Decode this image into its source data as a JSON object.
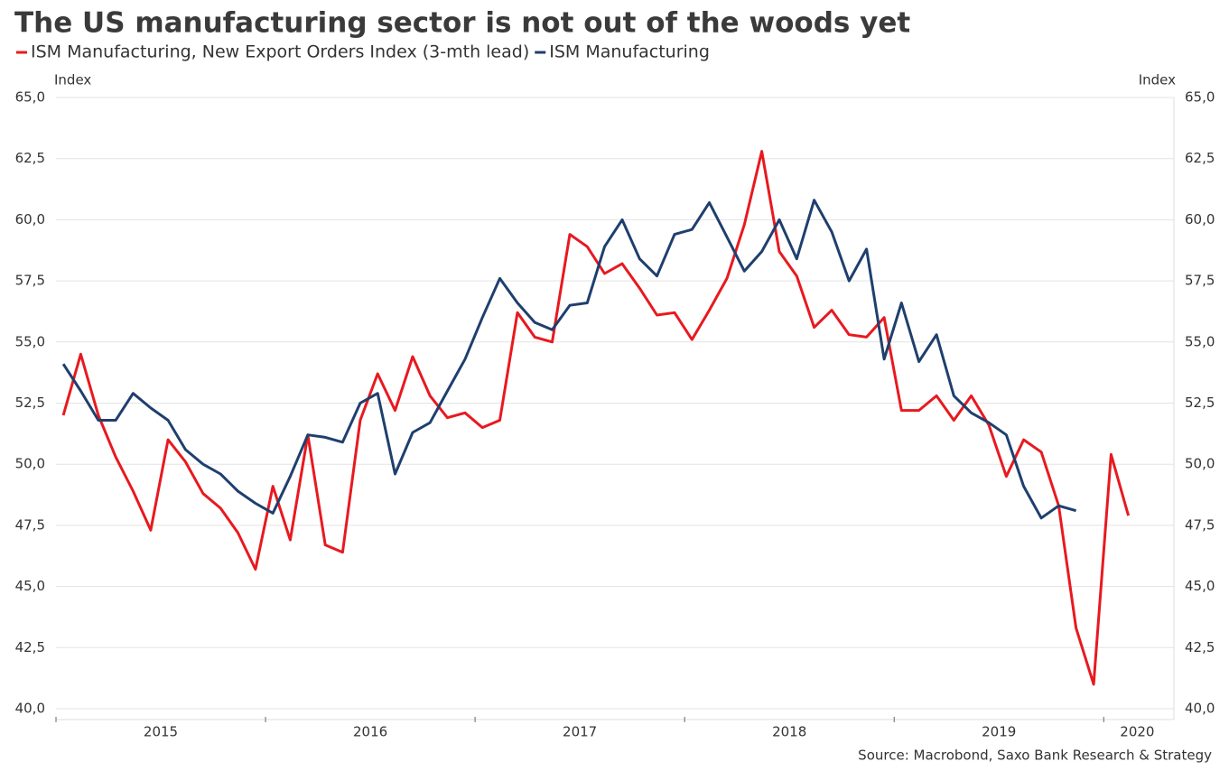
{
  "chart_data": {
    "type": "line",
    "title": "The US manufacturing sector is not out of the woods yet",
    "y_label": "Index",
    "y2_label": "Index",
    "source": "Source: Macrobond, Saxo Bank Research & Strategy",
    "x": [
      2015.035,
      2015.118,
      2015.202,
      2015.285,
      2015.368,
      2015.452,
      2015.535,
      2015.618,
      2015.702,
      2015.785,
      2015.868,
      2015.952,
      2016.035,
      2016.118,
      2016.202,
      2016.285,
      2016.368,
      2016.452,
      2016.535,
      2016.618,
      2016.702,
      2016.785,
      2016.868,
      2016.952,
      2017.035,
      2017.118,
      2017.202,
      2017.285,
      2017.368,
      2017.452,
      2017.535,
      2017.618,
      2017.702,
      2017.785,
      2017.868,
      2017.952,
      2018.035,
      2018.118,
      2018.202,
      2018.285,
      2018.368,
      2018.452,
      2018.535,
      2018.618,
      2018.702,
      2018.785,
      2018.868,
      2018.952,
      2019.035,
      2019.118,
      2019.202,
      2019.285,
      2019.368,
      2019.452,
      2019.535,
      2019.618,
      2019.702,
      2019.785,
      2019.868,
      2019.952,
      2020.035,
      2020.118
    ],
    "series": [
      {
        "name": "ISM Manufacturing, New Export Orders Index (3-mth lead)",
        "color": "#e8191f",
        "values": [
          52.0,
          54.5,
          52.0,
          50.3,
          48.9,
          47.3,
          51.0,
          50.1,
          48.8,
          48.2,
          47.2,
          45.7,
          49.1,
          46.9,
          51.2,
          46.7,
          46.4,
          51.8,
          53.7,
          52.2,
          54.4,
          52.8,
          51.9,
          52.1,
          51.5,
          51.8,
          56.2,
          55.2,
          55.0,
          59.4,
          58.9,
          57.8,
          58.2,
          57.2,
          56.1,
          56.2,
          55.1,
          56.3,
          57.6,
          59.8,
          62.8,
          58.7,
          57.7,
          55.6,
          56.3,
          55.3,
          55.2,
          56.0,
          52.2,
          52.2,
          52.8,
          51.8,
          52.8,
          51.6,
          49.5,
          51.0,
          50.5,
          48.3,
          43.3,
          41.0,
          50.4,
          47.9
        ]
      },
      {
        "name": "ISM Manufacturing",
        "color": "#1f3f6e",
        "axis": "y2",
        "values": [
          54.1,
          53.0,
          51.8,
          51.8,
          52.9,
          52.3,
          51.8,
          50.6,
          50.0,
          49.6,
          48.9,
          48.4,
          48.0,
          49.5,
          51.2,
          51.1,
          50.9,
          52.5,
          52.9,
          49.6,
          51.3,
          51.7,
          53.0,
          54.3,
          56.0,
          57.6,
          56.6,
          55.8,
          55.5,
          56.5,
          56.6,
          58.9,
          60.0,
          58.4,
          57.7,
          59.4,
          59.6,
          60.7,
          59.3,
          57.9,
          58.7,
          60.0,
          58.4,
          60.8,
          59.5,
          57.5,
          58.8,
          54.3,
          56.6,
          54.2,
          55.3,
          52.8,
          52.1,
          51.7,
          51.2,
          49.1,
          47.8,
          48.3,
          48.1,
          null,
          null,
          null
        ]
      }
    ],
    "xlim": [
      2015,
      2020.335
    ],
    "xticks": [
      {
        "value": 2015.5,
        "label": "2015"
      },
      {
        "value": 2016.5,
        "label": "2016"
      },
      {
        "value": 2017.5,
        "label": "2017"
      },
      {
        "value": 2018.5,
        "label": "2018"
      },
      {
        "value": 2019.5,
        "label": "2019"
      },
      {
        "value": 2020.16,
        "label": "2020"
      }
    ],
    "year_ticks": [
      2015,
      2016,
      2017,
      2018,
      2019,
      2020
    ],
    "ylim": [
      40,
      65
    ],
    "yticks": [
      {
        "value": 40,
        "label": "40,0"
      },
      {
        "value": 42.5,
        "label": "42,5"
      },
      {
        "value": 45,
        "label": "45,0"
      },
      {
        "value": 47.5,
        "label": "47,5"
      },
      {
        "value": 50,
        "label": "50,0"
      },
      {
        "value": 52.5,
        "label": "52,5"
      },
      {
        "value": 55,
        "label": "55,0"
      },
      {
        "value": 57.5,
        "label": "57,5"
      },
      {
        "value": 60,
        "label": "60,0"
      },
      {
        "value": 62.5,
        "label": "62,5"
      },
      {
        "value": 65,
        "label": "65,0"
      }
    ],
    "y2lim": [
      40,
      65
    ],
    "y2ticks": [
      {
        "value": 40,
        "label": "40,0"
      },
      {
        "value": 42.5,
        "label": "42,5"
      },
      {
        "value": 45,
        "label": "45,0"
      },
      {
        "value": 47.5,
        "label": "47,5"
      },
      {
        "value": 50,
        "label": "50,0"
      },
      {
        "value": 52.5,
        "label": "52,5"
      },
      {
        "value": 55,
        "label": "55,0"
      },
      {
        "value": 57.5,
        "label": "57,5"
      },
      {
        "value": 60,
        "label": "60,0"
      },
      {
        "value": 62.5,
        "label": "62,5"
      },
      {
        "value": 65,
        "label": "65,0"
      }
    ],
    "grid": true
  }
}
